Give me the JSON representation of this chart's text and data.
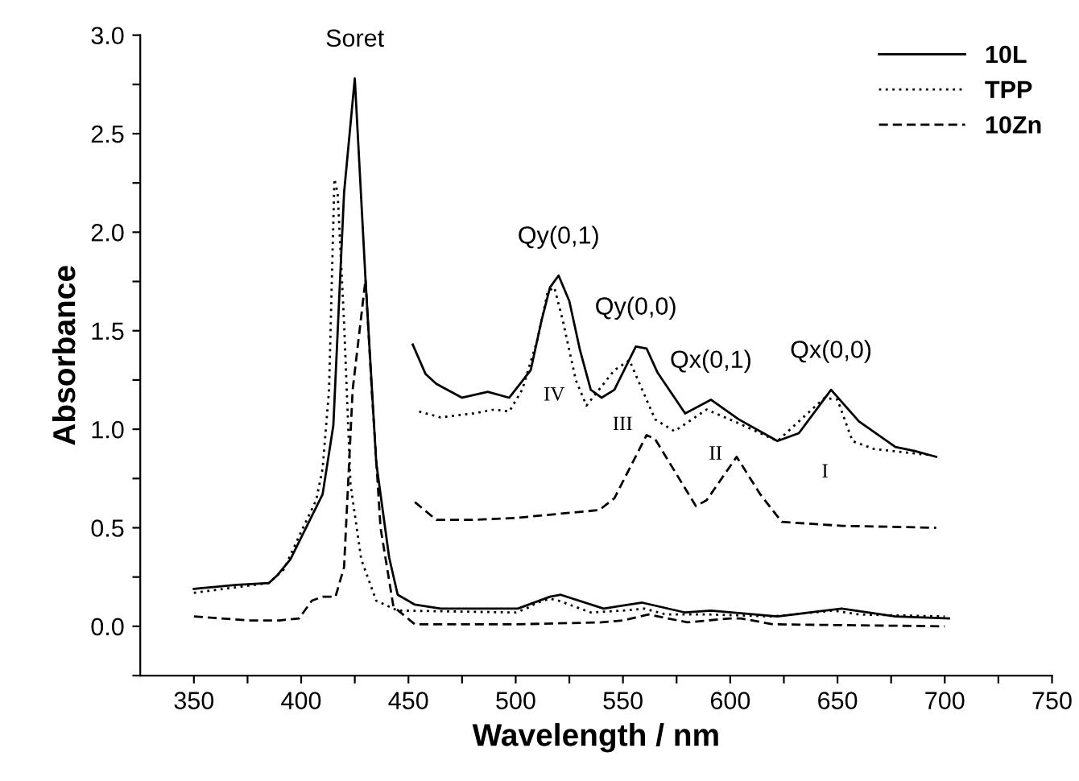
{
  "chart_data": {
    "type": "line",
    "xlabel": "Wavelength / nm",
    "ylabel": "Absorbance",
    "xlim": [
      325,
      750
    ],
    "ylim": [
      -0.25,
      3.0
    ],
    "xticks": [
      350,
      {
        "value": 375,
        "label": null
      },
      400,
      {
        "value": 425,
        "label": null
      },
      450,
      {
        "value": 475,
        "label": null
      },
      500,
      {
        "value": 525,
        "label": null
      },
      550,
      {
        "value": 575,
        "label": null
      },
      600,
      {
        "value": 625,
        "label": null
      },
      650,
      {
        "value": 675,
        "label": null
      },
      700,
      {
        "value": 725,
        "label": null
      },
      750
    ],
    "yticks": [
      {
        "value": -0.25,
        "label": null
      },
      {
        "value": 0.0,
        "label": "0.0"
      },
      {
        "value": 0.25,
        "label": null
      },
      {
        "value": 0.5,
        "label": "0.5"
      },
      {
        "value": 0.75,
        "label": null
      },
      {
        "value": 1.0,
        "label": "1.0"
      },
      {
        "value": 1.25,
        "label": null
      },
      {
        "value": 1.5,
        "label": "1.5"
      },
      {
        "value": 1.75,
        "label": null
      },
      {
        "value": 2.0,
        "label": "2.0"
      },
      {
        "value": 2.25,
        "label": null
      },
      {
        "value": 2.5,
        "label": "2.5"
      },
      {
        "value": 2.75,
        "label": null
      },
      {
        "value": 3.0,
        "label": "3.0"
      }
    ],
    "grid": false,
    "legend": "top right",
    "marker": "none",
    "series": [
      {
        "name": "10L",
        "color": "#000000",
        "line_style": "solid",
        "x": [
          350,
          370,
          385,
          389,
          395,
          410,
          415,
          420,
          425,
          430,
          435,
          441,
          445,
          453,
          465,
          501,
          516,
          521,
          541,
          559,
          579,
          591,
          622,
          652,
          677,
          702
        ],
        "values": [
          0.19,
          0.21,
          0.22,
          0.26,
          0.34,
          0.67,
          1.02,
          2.2,
          2.78,
          1.76,
          0.83,
          0.35,
          0.16,
          0.11,
          0.09,
          0.09,
          0.15,
          0.16,
          0.09,
          0.12,
          0.07,
          0.08,
          0.05,
          0.09,
          0.05,
          0.04
        ]
      },
      {
        "name": "TPP",
        "color": "#000000",
        "line_style": "dotted",
        "x": [
          350,
          385,
          392,
          400,
          407,
          410,
          413,
          415.5,
          417,
          420,
          423,
          428,
          435,
          445,
          500,
          505,
          510,
          516,
          520,
          535,
          550,
          560,
          570,
          590,
          620,
          648,
          660,
          700
        ],
        "values": [
          0.17,
          0.22,
          0.29,
          0.48,
          0.64,
          0.8,
          1.2,
          2.27,
          2.2,
          1.54,
          0.72,
          0.34,
          0.13,
          0.08,
          0.07,
          0.09,
          0.12,
          0.14,
          0.13,
          0.07,
          0.08,
          0.09,
          0.06,
          0.06,
          0.05,
          0.08,
          0.06,
          0.05
        ]
      },
      {
        "name": "10Zn",
        "color": "#000000",
        "line_style": "dashed",
        "x": [
          350,
          375,
          390,
          399,
          405,
          410,
          416,
          420,
          424,
          430,
          433,
          437,
          443,
          453,
          500,
          540,
          550,
          562,
          580,
          600,
          605,
          620,
          700
        ],
        "values": [
          0.05,
          0.03,
          0.03,
          0.04,
          0.13,
          0.15,
          0.15,
          0.3,
          1.2,
          1.76,
          1.18,
          0.5,
          0.1,
          0.01,
          0.01,
          0.02,
          0.03,
          0.06,
          0.02,
          0.04,
          0.04,
          0.01,
          0.0
        ]
      },
      {
        "color": "#000000",
        "line_style": "solid",
        "x": [
          452,
          458,
          463,
          475,
          487,
          497,
          502,
          507,
          512,
          516,
          520,
          525,
          530,
          535,
          540,
          546,
          556,
          561,
          566,
          579,
          591,
          604,
          622,
          632,
          647,
          660,
          677,
          686,
          696
        ],
        "values": [
          1.43,
          1.28,
          1.23,
          1.16,
          1.19,
          1.16,
          1.23,
          1.3,
          1.55,
          1.72,
          1.78,
          1.65,
          1.4,
          1.2,
          1.16,
          1.2,
          1.42,
          1.41,
          1.29,
          1.08,
          1.15,
          1.05,
          0.94,
          0.98,
          1.2,
          1.04,
          0.91,
          0.89,
          0.86
        ]
      },
      {
        "color": "#000000",
        "line_style": "dotted",
        "x": [
          455,
          465,
          480,
          490,
          497,
          503,
          510,
          515,
          518,
          522,
          528,
          533,
          546,
          553,
          565,
          574,
          589,
          604,
          622,
          644,
          650,
          657,
          667,
          692
        ],
        "values": [
          1.09,
          1.06,
          1.08,
          1.1,
          1.09,
          1.2,
          1.45,
          1.7,
          1.72,
          1.55,
          1.25,
          1.12,
          1.3,
          1.35,
          1.05,
          0.99,
          1.1,
          1.03,
          0.94,
          1.16,
          1.15,
          0.94,
          0.9,
          0.87
        ]
      },
      {
        "color": "#000000",
        "line_style": "dashed",
        "x": [
          453,
          463,
          480,
          500,
          539,
          546,
          561,
          565,
          584,
          589,
          603,
          614,
          624,
          652,
          696
        ],
        "values": [
          0.63,
          0.54,
          0.54,
          0.55,
          0.59,
          0.65,
          0.97,
          0.95,
          0.61,
          0.64,
          0.86,
          0.67,
          0.53,
          0.51,
          0.5
        ]
      }
    ],
    "annotations": [
      {
        "text": "Soret",
        "x": 425,
        "y": 2.78
      },
      {
        "text": "Qy(0,1)",
        "x": 520,
        "y": 1.78
      },
      {
        "text": "Qy(0,0)",
        "x": 556,
        "y": 1.42
      },
      {
        "text": "Qx(0,1)",
        "x": 591,
        "y": 1.15
      },
      {
        "text": "Qx(0,0)",
        "x": 647,
        "y": 1.2
      },
      "IV",
      "III",
      "II",
      "I"
    ]
  }
}
